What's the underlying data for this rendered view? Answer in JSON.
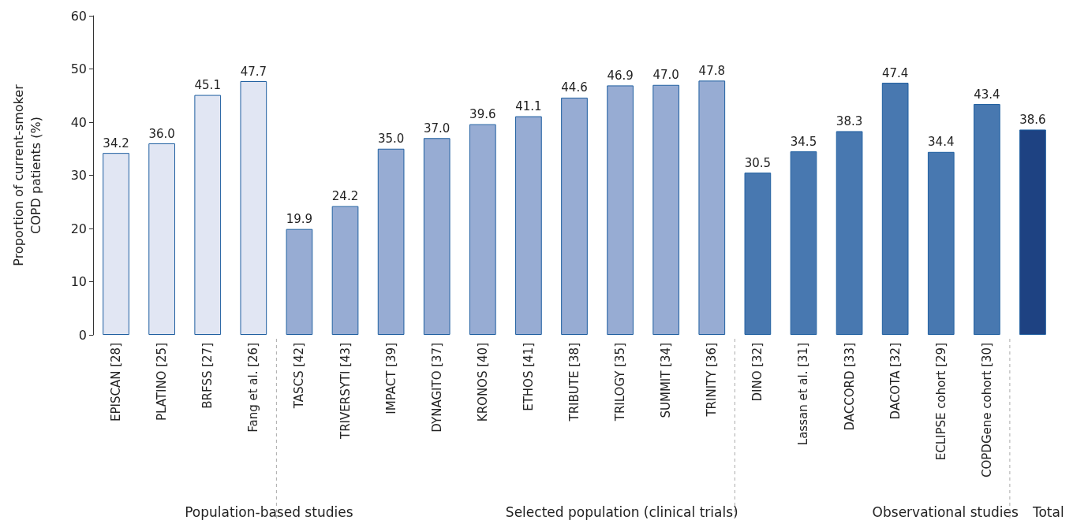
{
  "chart_data": {
    "type": "bar",
    "categories": [
      "EPISCAN [28]",
      "PLATINO [25]",
      "BRFSS [27]",
      "Fang et al. [26]",
      "TASCS [42]",
      "TRIVERSYTI [43]",
      "IMPACT [39]",
      "DYNAGITO [37]",
      "KRONOS [40]",
      "ETHOS [41]",
      "TRIBUTE [38]",
      "TRILOGY [35]",
      "SUMMIT [34]",
      "TRINITY [36]",
      "DINO [32]",
      "Lassan et al. [31]",
      "DACCORD [33]",
      "DACOTA [32]",
      "ECLIPSE cohort [29]",
      "COPDGene cohort [30]",
      null
    ],
    "values": [
      34.2,
      36.0,
      45.1,
      47.7,
      19.9,
      24.2,
      35.0,
      37.0,
      39.6,
      41.1,
      44.6,
      46.9,
      47.0,
      47.8,
      30.5,
      34.5,
      38.3,
      47.4,
      34.4,
      43.4,
      38.6
    ],
    "colors": [
      "#e1e6f3",
      "#e1e6f3",
      "#e1e6f3",
      "#e1e6f3",
      "#97acd3",
      "#97acd3",
      "#97acd3",
      "#97acd3",
      "#97acd3",
      "#97acd3",
      "#97acd3",
      "#97acd3",
      "#97acd3",
      "#97acd3",
      "#4878b0",
      "#4878b0",
      "#4878b0",
      "#4878b0",
      "#4878b0",
      "#4878b0",
      "#1e4282"
    ],
    "ylabel": "Proportion of current-smoker\nCOPD patients (%)",
    "ylim": [
      0,
      60
    ],
    "yticks": [
      0,
      10,
      20,
      30,
      40,
      50,
      60
    ],
    "value_labels": [
      "34.2",
      "36.0",
      "45.1",
      "47.7",
      "19.9",
      "24.2",
      "35.0",
      "37.0",
      "39.6",
      "41.1",
      "44.6",
      "46.9",
      "47.0",
      "47.8",
      "30.5",
      "34.5",
      "38.3",
      "47.4",
      "34.4",
      "43.4",
      "38.6"
    ],
    "grid": false,
    "annotations": [
      "Population-based studies",
      "Selected population (clinical trials)",
      "Observational studies",
      "Total"
    ]
  }
}
